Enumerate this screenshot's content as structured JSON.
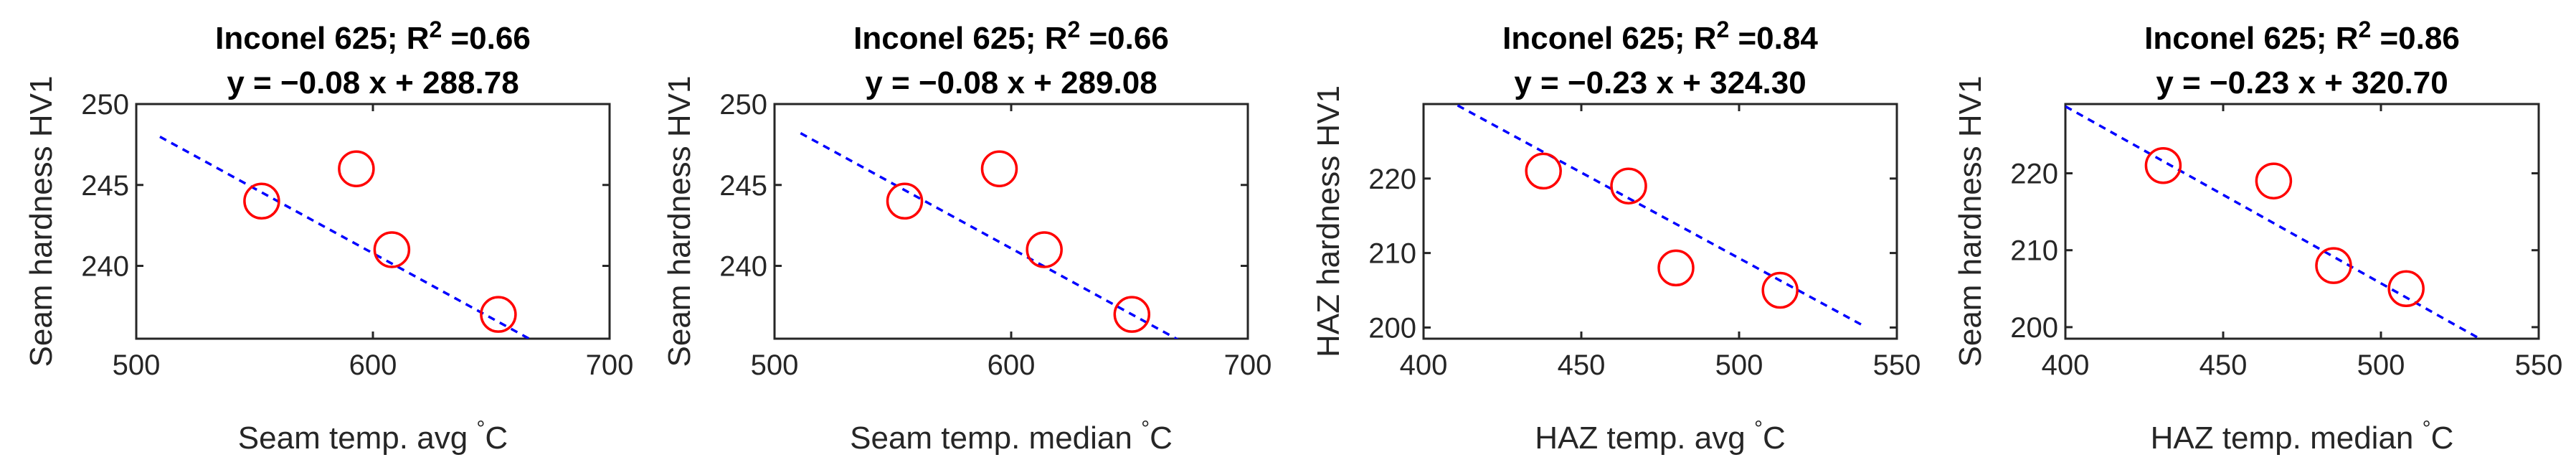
{
  "chart_data": [
    {
      "type": "scatter",
      "title_prefix": "Inconel 625; R",
      "title_sup": "2",
      "title_r2": " =0.66",
      "subtitle": "y = −0.08 x + 288.78",
      "xlabel": "Seam temp. avg",
      "xlabel_unit": "°C",
      "ylabel": "Seam hardness HV1",
      "xlim": [
        500,
        700
      ],
      "ylim": [
        235.5,
        250
      ],
      "xticks": [
        500,
        600,
        700
      ],
      "yticks": [
        240,
        245,
        250
      ],
      "points": [
        [
          553,
          244
        ],
        [
          593,
          246
        ],
        [
          608,
          241
        ],
        [
          653,
          237
        ]
      ],
      "fit": {
        "slope": -0.08,
        "intercept": 288.78,
        "x_range": [
          510,
          679
        ]
      },
      "colors": {
        "points": "#ff0000",
        "fit": "#0000ff"
      }
    },
    {
      "type": "scatter",
      "title_prefix": "Inconel 625; R",
      "title_sup": "2",
      "title_r2": " =0.66",
      "subtitle": "y = −0.08 x + 289.08",
      "xlabel": "Seam temp. median",
      "xlabel_unit": "°C",
      "ylabel": "Seam hardness HV1",
      "xlim": [
        500,
        700
      ],
      "ylim": [
        235.5,
        250
      ],
      "xticks": [
        500,
        600,
        700
      ],
      "yticks": [
        240,
        245,
        250
      ],
      "points": [
        [
          555,
          244
        ],
        [
          595,
          246
        ],
        [
          614,
          241
        ],
        [
          651,
          237
        ]
      ],
      "fit": {
        "slope": -0.08,
        "intercept": 289.08,
        "x_range": [
          511,
          680
        ]
      },
      "colors": {
        "points": "#ff0000",
        "fit": "#0000ff"
      }
    },
    {
      "type": "scatter",
      "title_prefix": "Inconel 625; R",
      "title_sup": "2",
      "title_r2": " =0.84",
      "subtitle": "y = −0.23 x + 324.30",
      "xlabel": "HAZ temp. avg",
      "xlabel_unit": "°C",
      "ylabel": "HAZ hardness HV1",
      "xlim": [
        400,
        550
      ],
      "ylim": [
        198.5,
        230
      ],
      "xticks": [
        400,
        450,
        500,
        550
      ],
      "yticks": [
        200,
        210,
        220
      ],
      "points": [
        [
          438,
          221
        ],
        [
          465,
          219
        ],
        [
          480,
          208
        ],
        [
          513,
          205
        ]
      ],
      "fit": {
        "slope": -0.23,
        "intercept": 324.3,
        "x_range": [
          400,
          540
        ]
      },
      "colors": {
        "points": "#ff0000",
        "fit": "#0000ff"
      }
    },
    {
      "type": "scatter",
      "title_prefix": "Inconel 625; R",
      "title_sup": "2",
      "title_r2": " =0.86",
      "subtitle": "y = −0.23 x + 320.70",
      "xlabel": "HAZ temp. median",
      "xlabel_unit": "°C",
      "ylabel": "Seam hardness HV1",
      "xlim": [
        400,
        550
      ],
      "ylim": [
        198.5,
        229
      ],
      "xticks": [
        400,
        450,
        500,
        550
      ],
      "yticks": [
        200,
        210,
        220
      ],
      "points": [
        [
          431,
          221
        ],
        [
          466,
          219
        ],
        [
          485,
          208
        ],
        [
          508,
          205
        ]
      ],
      "fit": {
        "slope": -0.23,
        "intercept": 320.7,
        "x_range": [
          400,
          538
        ]
      },
      "colors": {
        "points": "#ff0000",
        "fit": "#0000ff"
      }
    }
  ]
}
